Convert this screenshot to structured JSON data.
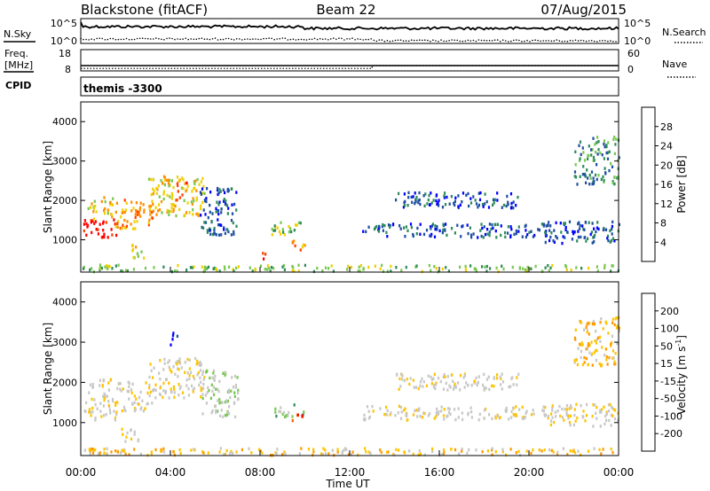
{
  "header": {
    "station": "Blackstone (fitACF)",
    "beam": "Beam 22",
    "date": "07/Aug/2015"
  },
  "side_labels": {
    "nsky": "N.Sky",
    "nsearch": "N.Search",
    "freq_line1": "Freq.",
    "freq_line2": "[MHz]",
    "nave": "Nave",
    "cpid": "CPID"
  },
  "noise_panel": {
    "left_ticks": [
      "10^5",
      "10^0"
    ],
    "right_ticks": [
      "10^5",
      "10^0"
    ]
  },
  "freq_panel": {
    "left_ticks": [
      "18",
      "8"
    ],
    "right_ticks": [
      "60",
      "0"
    ],
    "freq_mhz_before": 10.5,
    "freq_mhz_after": 10.5,
    "nave_before": 7,
    "nave_after": 15,
    "change_hour": 13.0
  },
  "cpid_panel": {
    "label": "themis -3300"
  },
  "x_axis": {
    "title": "Time UT",
    "ticks": [
      "00:00",
      "04:00",
      "08:00",
      "12:00",
      "16:00",
      "20:00",
      "00:00"
    ]
  },
  "colors": {
    "power": [
      "#0000ff",
      "#1e4fa0",
      "#2e8b57",
      "#78c850",
      "#f0d000",
      "#ff9000",
      "#ff4000",
      "#ff0000"
    ],
    "velocity": [
      "#ff0000",
      "#ff5a00",
      "#ff9a00",
      "#ffc400",
      "#c8c8c8",
      "#c8c8c8",
      "#78c850",
      "#2e8b57",
      "#1e4fa0",
      "#0000ff"
    ],
    "ground_scatter": "#c0c0c0"
  },
  "chart_data": [
    {
      "type": "heatmap",
      "name": "power",
      "ylabel": "Slant Range [km]",
      "xlabel": "Time UT",
      "xlim": [
        0,
        24
      ],
      "ylim": [
        180,
        4500
      ],
      "y_ticks": [
        "1000",
        "2000",
        "3000",
        "4000"
      ],
      "colorbar": {
        "label": "Power [dB]",
        "ticks": [
          "4",
          "8",
          "12",
          "16",
          "20",
          "24",
          "28"
        ],
        "range": [
          0,
          30
        ]
      },
      "regions": [
        {
          "t0": 0.1,
          "t1": 1.6,
          "r0": 1050,
          "r1": 1500,
          "level": 7
        },
        {
          "t0": 0.3,
          "t1": 1.4,
          "r0": 1500,
          "r1": 2100,
          "level": 4
        },
        {
          "t0": 1.5,
          "t1": 3.2,
          "r0": 1250,
          "r1": 2000,
          "level": 5
        },
        {
          "t0": 3.0,
          "t1": 5.5,
          "r0": 1600,
          "r1": 2600,
          "level": 4
        },
        {
          "t0": 4.2,
          "t1": 4.7,
          "r0": 2000,
          "r1": 2500,
          "level": 6
        },
        {
          "t0": 5.3,
          "t1": 7.0,
          "r0": 1100,
          "r1": 2300,
          "level": 1
        },
        {
          "t0": 2.2,
          "t1": 2.8,
          "r0": 500,
          "r1": 900,
          "level": 4
        },
        {
          "t0": 7.8,
          "t1": 8.2,
          "r0": 500,
          "r1": 700,
          "level": 6
        },
        {
          "t0": 8.5,
          "t1": 10.0,
          "r0": 1100,
          "r1": 1450,
          "level": 3
        },
        {
          "t0": 9.4,
          "t1": 10.0,
          "r0": 700,
          "r1": 1000,
          "level": 5
        },
        {
          "t0": 12.5,
          "t1": 21.0,
          "r0": 1050,
          "r1": 1400,
          "level": 1
        },
        {
          "t0": 14.0,
          "t1": 19.5,
          "r0": 1800,
          "r1": 2200,
          "level": 1
        },
        {
          "t0": 20.5,
          "t1": 24.0,
          "r0": 900,
          "r1": 1450,
          "level": 1
        },
        {
          "t0": 22.0,
          "t1": 24.0,
          "r0": 2400,
          "r1": 3600,
          "level": 2
        },
        {
          "t0": 0.0,
          "t1": 24.0,
          "r0": 180,
          "r1": 350,
          "level": 3
        }
      ]
    },
    {
      "type": "heatmap",
      "name": "velocity",
      "ylabel": "Slant Range [km]",
      "xlabel": "Time UT",
      "xlim": [
        0,
        24
      ],
      "ylim": [
        180,
        4500
      ],
      "y_ticks": [
        "1000",
        "2000",
        "3000",
        "4000"
      ],
      "colorbar": {
        "label": "Velocity [m s^-1]",
        "ticks": [
          "-200",
          "-100",
          "-50",
          "-15",
          "15",
          "50",
          "100",
          "200"
        ],
        "range": [
          -250,
          250
        ]
      },
      "regions": [
        {
          "t0": 0.1,
          "t1": 1.6,
          "r0": 1050,
          "r1": 1500,
          "level": 4
        },
        {
          "t0": 0.3,
          "t1": 1.4,
          "r0": 1500,
          "r1": 2100,
          "level": 4
        },
        {
          "t0": 1.5,
          "t1": 3.2,
          "r0": 1250,
          "r1": 2000,
          "level": 4
        },
        {
          "t0": 3.0,
          "t1": 5.5,
          "r0": 1600,
          "r1": 2600,
          "level": 4
        },
        {
          "t0": 5.3,
          "t1": 7.0,
          "r0": 1100,
          "r1": 2300,
          "level": 5
        },
        {
          "t0": 8.5,
          "t1": 10.0,
          "r0": 1100,
          "r1": 1450,
          "level": 6
        },
        {
          "t0": 9.4,
          "t1": 10.0,
          "r0": 1000,
          "r1": 1200,
          "level": 1
        },
        {
          "t0": 3.9,
          "t1": 4.3,
          "r0": 2900,
          "r1": 3300,
          "level": 9
        },
        {
          "t0": 1.8,
          "t1": 2.6,
          "r0": 500,
          "r1": 900,
          "level": 4
        },
        {
          "t0": 12.5,
          "t1": 21.0,
          "r0": 1050,
          "r1": 1400,
          "level": 4
        },
        {
          "t0": 14.0,
          "t1": 19.5,
          "r0": 1800,
          "r1": 2200,
          "level": 4
        },
        {
          "t0": 20.5,
          "t1": 24.0,
          "r0": 900,
          "r1": 1450,
          "level": 4
        },
        {
          "t0": 22.0,
          "t1": 24.0,
          "r0": 2400,
          "r1": 3600,
          "level": 3
        },
        {
          "t0": 0.0,
          "t1": 24.0,
          "r0": 180,
          "r1": 350,
          "level": 3
        }
      ]
    }
  ]
}
